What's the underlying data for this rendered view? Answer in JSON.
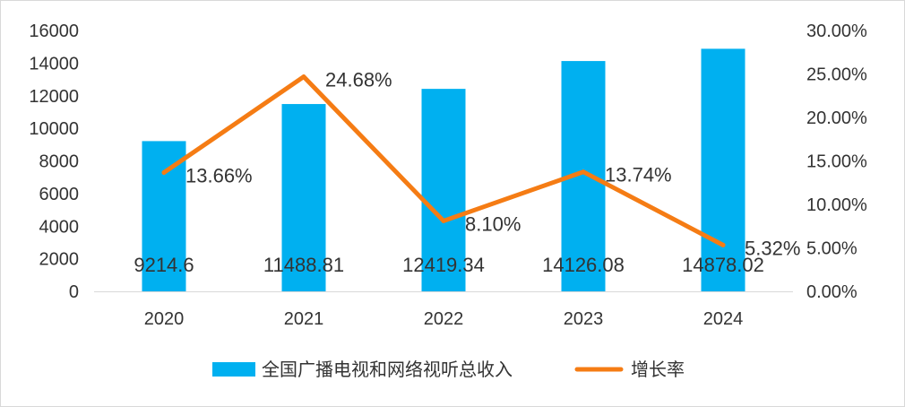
{
  "chart_data": {
    "type": "bar",
    "categories": [
      "2020",
      "2021",
      "2022",
      "2023",
      "2024"
    ],
    "series": [
      {
        "name": "全国广播电视和网络视听总收入",
        "type": "bar",
        "axis": "left",
        "color": "#00b0f0",
        "values": [
          9214.6,
          11488.81,
          12419.34,
          14126.08,
          14878.02
        ],
        "labels": [
          "9214.6",
          "11488.81",
          "12419.34",
          "14126.08",
          "14878.02"
        ]
      },
      {
        "name": "增长率",
        "type": "line",
        "axis": "right",
        "color": "#f57c14",
        "values": [
          13.66,
          24.68,
          8.1,
          13.74,
          5.32
        ],
        "labels": [
          "13.66%",
          "24.68%",
          "8.10%",
          "13.74%",
          "5.32%"
        ]
      }
    ],
    "y_left": {
      "ylim": [
        0,
        16000
      ],
      "ticks": [
        0,
        2000,
        4000,
        6000,
        8000,
        10000,
        12000,
        14000,
        16000
      ],
      "tick_labels": [
        "0",
        "2000",
        "4000",
        "6000",
        "8000",
        "10000",
        "12000",
        "14000",
        "16000"
      ]
    },
    "y_right": {
      "ylim": [
        0,
        30
      ],
      "ticks": [
        0,
        5,
        10,
        15,
        20,
        25,
        30
      ],
      "tick_labels": [
        "0.00%",
        "5.00%",
        "10.00%",
        "15.00%",
        "20.00%",
        "25.00%",
        "30.00%"
      ]
    },
    "grid": false,
    "legend_position": "bottom",
    "title": "",
    "xlabel": "",
    "ylabel": ""
  }
}
